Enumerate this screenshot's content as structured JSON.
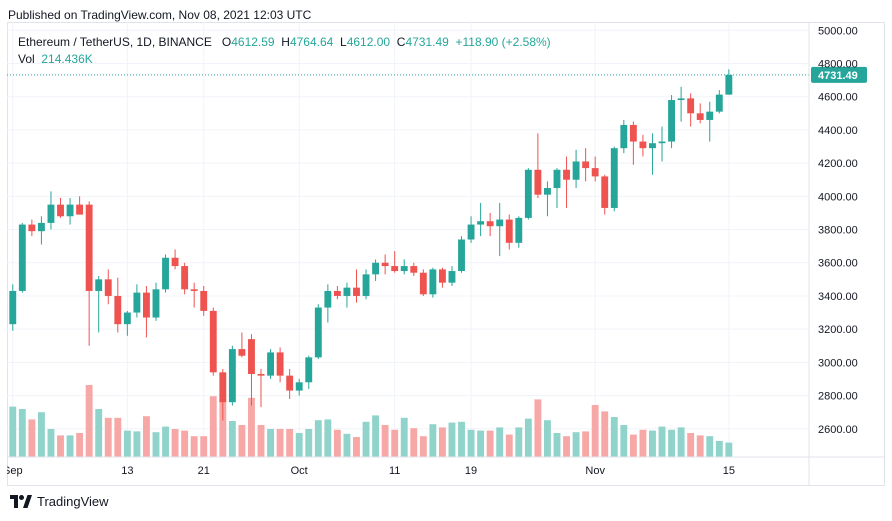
{
  "header": {
    "published": "Published on TradingView.com, Nov 08, 2021 12:03 UTC"
  },
  "legend": {
    "symbol": "Ethereum / TetherUS, 1D, BINANCE",
    "o_label": "O",
    "o_val": "4612.59",
    "h_label": "H",
    "h_val": "4764.64",
    "l_label": "L",
    "l_val": "4612.00",
    "c_label": "C",
    "c_val": "4731.49",
    "change": "+118.90 (+2.58%)",
    "vol_label": "Vol",
    "vol_val": "214.436K"
  },
  "footer": {
    "brand": "TradingView"
  },
  "colors": {
    "up": "#26a69a",
    "down": "#ef5350",
    "vol_up": "#8fd3cb",
    "vol_down": "#f7a8a6",
    "grid": "#f0f3fa",
    "border": "#e0e3eb"
  },
  "chart_data": {
    "type": "candlestick",
    "y_ticks": [
      "2600.00",
      "2800.00",
      "3000.00",
      "3200.00",
      "3400.00",
      "3600.00",
      "3800.00",
      "4000.00",
      "4200.00",
      "4400.00",
      "4600.00",
      "4800.00",
      "5000.00"
    ],
    "y_range": [
      2430,
      5050
    ],
    "x_ticks": [
      {
        "label": "Sep",
        "index": 0
      },
      {
        "label": "13",
        "index": 12
      },
      {
        "label": "21",
        "index": 20
      },
      {
        "label": "Oct",
        "index": 30
      },
      {
        "label": "11",
        "index": 40
      },
      {
        "label": "19",
        "index": 48
      },
      {
        "label": "Nov",
        "index": 61
      },
      {
        "label": "15",
        "index": 75
      }
    ],
    "x_slots": 84,
    "last_price": "4731.49",
    "last_value": 4731.49,
    "candles": [
      {
        "o": 3230,
        "h": 3470,
        "l": 3190,
        "c": 3430,
        "v": 0.63
      },
      {
        "o": 3430,
        "h": 3840,
        "l": 3420,
        "c": 3830,
        "v": 0.6
      },
      {
        "o": 3830,
        "h": 3860,
        "l": 3760,
        "c": 3790,
        "v": 0.47
      },
      {
        "o": 3790,
        "h": 3880,
        "l": 3710,
        "c": 3840,
        "v": 0.56
      },
      {
        "o": 3840,
        "h": 4030,
        "l": 3800,
        "c": 3950,
        "v": 0.35
      },
      {
        "o": 3950,
        "h": 3990,
        "l": 3870,
        "c": 3880,
        "v": 0.27
      },
      {
        "o": 3880,
        "h": 3990,
        "l": 3830,
        "c": 3950,
        "v": 0.27
      },
      {
        "o": 3950,
        "h": 4000,
        "l": 3890,
        "c": 3890,
        "v": 0.3
      },
      {
        "o": 3950,
        "h": 3970,
        "l": 3100,
        "c": 3430,
        "v": 0.9
      },
      {
        "o": 3430,
        "h": 3520,
        "l": 3180,
        "c": 3500,
        "v": 0.6
      },
      {
        "o": 3500,
        "h": 3560,
        "l": 3350,
        "c": 3400,
        "v": 0.49
      },
      {
        "o": 3400,
        "h": 3510,
        "l": 3180,
        "c": 3230,
        "v": 0.49
      },
      {
        "o": 3230,
        "h": 3310,
        "l": 3160,
        "c": 3300,
        "v": 0.33
      },
      {
        "o": 3300,
        "h": 3470,
        "l": 3270,
        "c": 3420,
        "v": 0.32
      },
      {
        "o": 3420,
        "h": 3460,
        "l": 3150,
        "c": 3270,
        "v": 0.51
      },
      {
        "o": 3270,
        "h": 3480,
        "l": 3250,
        "c": 3440,
        "v": 0.31
      },
      {
        "o": 3440,
        "h": 3650,
        "l": 3420,
        "c": 3630,
        "v": 0.38
      },
      {
        "o": 3630,
        "h": 3680,
        "l": 3560,
        "c": 3580,
        "v": 0.35
      },
      {
        "o": 3580,
        "h": 3600,
        "l": 3410,
        "c": 3440,
        "v": 0.33
      },
      {
        "o": 3440,
        "h": 3480,
        "l": 3330,
        "c": 3430,
        "v": 0.26
      },
      {
        "o": 3430,
        "h": 3460,
        "l": 3280,
        "c": 3310,
        "v": 0.26
      },
      {
        "o": 3310,
        "h": 3330,
        "l": 2920,
        "c": 2940,
        "v": 0.76
      },
      {
        "o": 2940,
        "h": 2960,
        "l": 2650,
        "c": 2760,
        "v": 0.73
      },
      {
        "o": 2760,
        "h": 3100,
        "l": 2740,
        "c": 3080,
        "v": 0.45
      },
      {
        "o": 3080,
        "h": 3180,
        "l": 3030,
        "c": 3040,
        "v": 0.4
      },
      {
        "o": 3140,
        "h": 3170,
        "l": 2740,
        "c": 2930,
        "v": 0.74
      },
      {
        "o": 2930,
        "h": 2960,
        "l": 2730,
        "c": 2920,
        "v": 0.4
      },
      {
        "o": 2920,
        "h": 3080,
        "l": 2900,
        "c": 3060,
        "v": 0.35
      },
      {
        "o": 3060,
        "h": 3090,
        "l": 2880,
        "c": 2920,
        "v": 0.35
      },
      {
        "o": 2920,
        "h": 2960,
        "l": 2780,
        "c": 2830,
        "v": 0.35
      },
      {
        "o": 2830,
        "h": 2900,
        "l": 2800,
        "c": 2880,
        "v": 0.3
      },
      {
        "o": 2880,
        "h": 3040,
        "l": 2840,
        "c": 3030,
        "v": 0.35
      },
      {
        "o": 3030,
        "h": 3350,
        "l": 3020,
        "c": 3330,
        "v": 0.46
      },
      {
        "o": 3330,
        "h": 3470,
        "l": 3240,
        "c": 3430,
        "v": 0.47
      },
      {
        "o": 3430,
        "h": 3460,
        "l": 3380,
        "c": 3400,
        "v": 0.34
      },
      {
        "o": 3400,
        "h": 3480,
        "l": 3330,
        "c": 3450,
        "v": 0.29
      },
      {
        "o": 3450,
        "h": 3560,
        "l": 3360,
        "c": 3400,
        "v": 0.25
      },
      {
        "o": 3400,
        "h": 3560,
        "l": 3380,
        "c": 3530,
        "v": 0.44
      },
      {
        "o": 3530,
        "h": 3620,
        "l": 3490,
        "c": 3600,
        "v": 0.52
      },
      {
        "o": 3600,
        "h": 3650,
        "l": 3530,
        "c": 3580,
        "v": 0.4
      },
      {
        "o": 3580,
        "h": 3670,
        "l": 3540,
        "c": 3550,
        "v": 0.34
      },
      {
        "o": 3550,
        "h": 3620,
        "l": 3530,
        "c": 3580,
        "v": 0.49
      },
      {
        "o": 3580,
        "h": 3600,
        "l": 3520,
        "c": 3540,
        "v": 0.36
      },
      {
        "o": 3540,
        "h": 3560,
        "l": 3400,
        "c": 3410,
        "v": 0.26
      },
      {
        "o": 3410,
        "h": 3570,
        "l": 3390,
        "c": 3560,
        "v": 0.41
      },
      {
        "o": 3560,
        "h": 3570,
        "l": 3450,
        "c": 3480,
        "v": 0.37
      },
      {
        "o": 3480,
        "h": 3580,
        "l": 3460,
        "c": 3550,
        "v": 0.43
      },
      {
        "o": 3550,
        "h": 3760,
        "l": 3540,
        "c": 3740,
        "v": 0.44
      },
      {
        "o": 3740,
        "h": 3880,
        "l": 3720,
        "c": 3830,
        "v": 0.34
      },
      {
        "o": 3830,
        "h": 3960,
        "l": 3760,
        "c": 3850,
        "v": 0.33
      },
      {
        "o": 3850,
        "h": 3900,
        "l": 3760,
        "c": 3820,
        "v": 0.33
      },
      {
        "o": 3820,
        "h": 3960,
        "l": 3640,
        "c": 3860,
        "v": 0.37
      },
      {
        "o": 3860,
        "h": 3890,
        "l": 3680,
        "c": 3720,
        "v": 0.28
      },
      {
        "o": 3720,
        "h": 3880,
        "l": 3690,
        "c": 3870,
        "v": 0.37
      },
      {
        "o": 3870,
        "h": 4170,
        "l": 3860,
        "c": 4160,
        "v": 0.48
      },
      {
        "o": 4160,
        "h": 4380,
        "l": 3990,
        "c": 4010,
        "v": 0.72
      },
      {
        "o": 4010,
        "h": 4090,
        "l": 3880,
        "c": 4050,
        "v": 0.46
      },
      {
        "o": 4050,
        "h": 4170,
        "l": 3930,
        "c": 4160,
        "v": 0.3
      },
      {
        "o": 4160,
        "h": 4240,
        "l": 3930,
        "c": 4100,
        "v": 0.26
      },
      {
        "o": 4100,
        "h": 4280,
        "l": 4050,
        "c": 4210,
        "v": 0.31
      },
      {
        "o": 4210,
        "h": 4290,
        "l": 4090,
        "c": 4170,
        "v": 0.32
      },
      {
        "o": 4170,
        "h": 4240,
        "l": 4090,
        "c": 4120,
        "v": 0.65
      },
      {
        "o": 4120,
        "h": 4130,
        "l": 3890,
        "c": 3930,
        "v": 0.57
      },
      {
        "o": 3930,
        "h": 4300,
        "l": 3910,
        "c": 4290,
        "v": 0.5
      },
      {
        "o": 4290,
        "h": 4460,
        "l": 4260,
        "c": 4430,
        "v": 0.4
      },
      {
        "o": 4430,
        "h": 4450,
        "l": 4190,
        "c": 4330,
        "v": 0.28
      },
      {
        "o": 4330,
        "h": 4370,
        "l": 4240,
        "c": 4290,
        "v": 0.34
      },
      {
        "o": 4290,
        "h": 4380,
        "l": 4130,
        "c": 4320,
        "v": 0.33
      },
      {
        "o": 4320,
        "h": 4420,
        "l": 4210,
        "c": 4330,
        "v": 0.38
      },
      {
        "o": 4330,
        "h": 4610,
        "l": 4290,
        "c": 4580,
        "v": 0.34
      },
      {
        "o": 4580,
        "h": 4660,
        "l": 4450,
        "c": 4590,
        "v": 0.37
      },
      {
        "o": 4590,
        "h": 4620,
        "l": 4420,
        "c": 4500,
        "v": 0.3
      },
      {
        "o": 4500,
        "h": 4560,
        "l": 4440,
        "c": 4460,
        "v": 0.27
      },
      {
        "o": 4460,
        "h": 4570,
        "l": 4330,
        "c": 4510,
        "v": 0.26
      },
      {
        "o": 4510,
        "h": 4640,
        "l": 4500,
        "c": 4612.59,
        "v": 0.2
      },
      {
        "o": 4612.59,
        "h": 4764.64,
        "l": 4612,
        "c": 4731.49,
        "v": 0.18
      }
    ]
  }
}
